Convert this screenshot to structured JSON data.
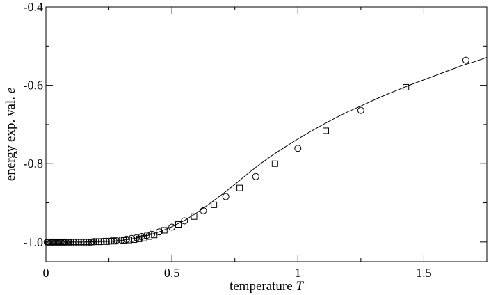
{
  "chart_data": {
    "type": "line",
    "title": "",
    "xlabel": "temperature",
    "xlabel_var": "T",
    "ylabel": "energy exp. val.",
    "ylabel_var": "e",
    "xlim": [
      0,
      1.75
    ],
    "ylim": [
      -1.05,
      -0.4
    ],
    "grid": false,
    "legend": "none",
    "x_ticks": [
      0,
      0.5,
      1,
      1.5
    ],
    "x_tick_labels": [
      "0",
      "0.5",
      "1",
      "1.5"
    ],
    "y_ticks": [
      -1.0,
      -0.8,
      -0.6,
      -0.4
    ],
    "y_tick_labels": [
      "-1.0",
      "-0.8",
      "-0.6",
      "-0.4"
    ],
    "series": [
      {
        "marker": "line",
        "x": [
          0.01,
          0.05,
          0.1,
          0.15,
          0.2,
          0.25,
          0.3,
          0.35,
          0.4,
          0.45,
          0.5,
          0.55,
          0.6,
          0.65,
          0.7,
          0.75,
          0.8,
          0.85,
          0.9,
          0.95,
          1.0,
          1.05,
          1.1,
          1.15,
          1.2,
          1.25,
          1.3,
          1.35,
          1.4,
          1.45,
          1.5,
          1.55,
          1.6,
          1.65,
          1.7,
          1.75
        ],
        "y": [
          -1.0,
          -1.0,
          -1.0,
          -1.0,
          -0.999,
          -0.998,
          -0.996,
          -0.991,
          -0.984,
          -0.974,
          -0.961,
          -0.945,
          -0.925,
          -0.902,
          -0.878,
          -0.853,
          -0.826,
          -0.801,
          -0.778,
          -0.757,
          -0.737,
          -0.718,
          -0.7,
          -0.683,
          -0.667,
          -0.653,
          -0.638,
          -0.624,
          -0.611,
          -0.598,
          -0.586,
          -0.574,
          -0.562,
          -0.55,
          -0.54,
          -0.529
        ]
      },
      {
        "marker": "circle",
        "x": [
          0.005,
          0.01,
          0.015,
          0.02,
          0.025,
          0.03,
          0.035,
          0.04,
          0.045,
          0.05,
          0.055,
          0.06,
          0.065,
          0.07,
          0.075,
          0.08,
          0.09,
          0.1,
          0.11,
          0.12,
          0.13,
          0.14,
          0.15,
          0.16,
          0.17,
          0.18,
          0.19,
          0.2,
          0.21,
          0.22,
          0.23,
          0.24,
          0.25,
          0.26,
          0.27,
          0.28,
          0.3,
          0.32,
          0.34,
          0.36,
          0.38,
          0.4,
          0.42,
          0.45,
          0.5,
          0.55,
          0.625,
          0.714,
          0.833,
          1.0,
          1.25,
          1.667
        ],
        "y": [
          -1.0,
          -1.0,
          -1.0,
          -1.0,
          -1.0,
          -1.0,
          -1.0,
          -1.0,
          -1.0,
          -1.0,
          -1.0,
          -1.0,
          -1.0,
          -1.0,
          -1.0,
          -1.0,
          -1.0,
          -1.0,
          -1.0,
          -1.0,
          -1.0,
          -1.0,
          -1.0,
          -1.0,
          -1.0,
          -1.0,
          -0.999,
          -0.999,
          -0.999,
          -0.999,
          -0.998,
          -0.998,
          -0.998,
          -0.997,
          -0.997,
          -0.996,
          -0.995,
          -0.993,
          -0.991,
          -0.989,
          -0.986,
          -0.983,
          -0.98,
          -0.974,
          -0.962,
          -0.946,
          -0.92,
          -0.884,
          -0.833,
          -0.761,
          -0.664,
          -0.536
        ]
      },
      {
        "marker": "square",
        "x": [
          0.01,
          0.03,
          0.05,
          0.07,
          0.09,
          0.12,
          0.15,
          0.18,
          0.21,
          0.24,
          0.27,
          0.31,
          0.33,
          0.35,
          0.37,
          0.39,
          0.41,
          0.43,
          0.47,
          0.526,
          0.588,
          0.667,
          0.769,
          0.909,
          1.111,
          1.429
        ],
        "y": [
          -1.0,
          -1.0,
          -1.0,
          -1.0,
          -1.0,
          -1.0,
          -1.0,
          -1.0,
          -0.999,
          -0.999,
          -0.998,
          -0.996,
          -0.995,
          -0.994,
          -0.992,
          -0.99,
          -0.986,
          -0.982,
          -0.97,
          -0.955,
          -0.935,
          -0.905,
          -0.862,
          -0.8,
          -0.716,
          -0.605
        ]
      }
    ]
  }
}
